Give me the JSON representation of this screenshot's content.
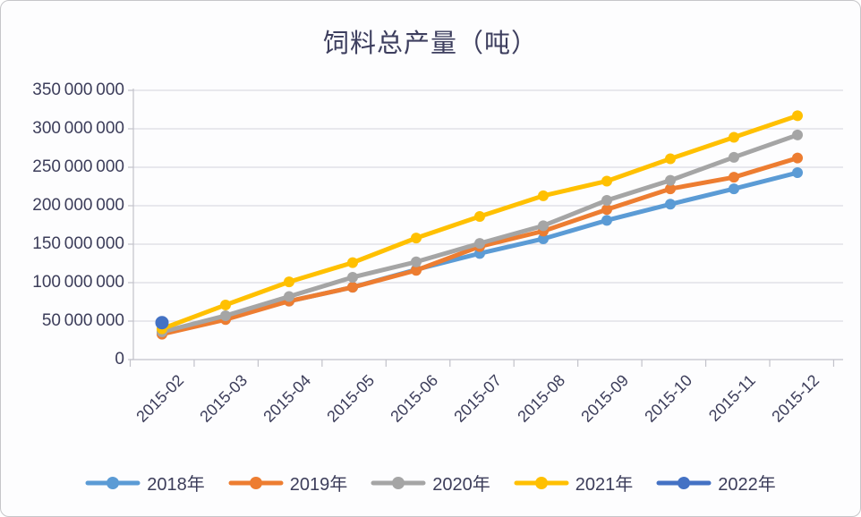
{
  "chart_data": {
    "type": "line",
    "title": "饲料总产量（吨）",
    "categories": [
      "2015-02",
      "2015-03",
      "2015-04",
      "2015-05",
      "2015-06",
      "2015-07",
      "2015-08",
      "2015-09",
      "2015-10",
      "2015-11",
      "2015-12"
    ],
    "series": [
      {
        "name": "2018年",
        "color": "#5B9BD5",
        "values": [
          35000000,
          55000000,
          76000000,
          94000000,
          117000000,
          138000000,
          157000000,
          181000000,
          202000000,
          222000000,
          243000000
        ]
      },
      {
        "name": "2019年",
        "color": "#ED7D31",
        "values": [
          33000000,
          52000000,
          76000000,
          94000000,
          116000000,
          147000000,
          167000000,
          195000000,
          222000000,
          237000000,
          262000000
        ]
      },
      {
        "name": "2020年",
        "color": "#A5A5A5",
        "values": [
          36000000,
          57000000,
          82000000,
          107000000,
          127000000,
          151000000,
          174000000,
          207000000,
          233000000,
          263000000,
          292000000
        ]
      },
      {
        "name": "2021年",
        "color": "#FFC000",
        "values": [
          40000000,
          71000000,
          101000000,
          126000000,
          158000000,
          186000000,
          213000000,
          232000000,
          261000000,
          289000000,
          317000000
        ]
      },
      {
        "name": "2022年",
        "color": "#4472C4",
        "values": [
          48000000
        ]
      }
    ],
    "ylim": [
      0,
      350000000
    ],
    "y_ticks": [
      0,
      50000000,
      100000000,
      150000000,
      200000000,
      250000000,
      300000000,
      350000000
    ],
    "grid": true,
    "legend_position": "bottom"
  },
  "y_axis": {
    "tick_labels": [
      "0",
      "50 000 000",
      "100 000 000",
      "150 000 000",
      "200 000 000",
      "250 000 000",
      "300 000 000",
      "350 000 000"
    ]
  },
  "colors": {
    "grid": "#dcdce3",
    "axis": "#c2c2ca",
    "text": "#3c3d5a"
  }
}
